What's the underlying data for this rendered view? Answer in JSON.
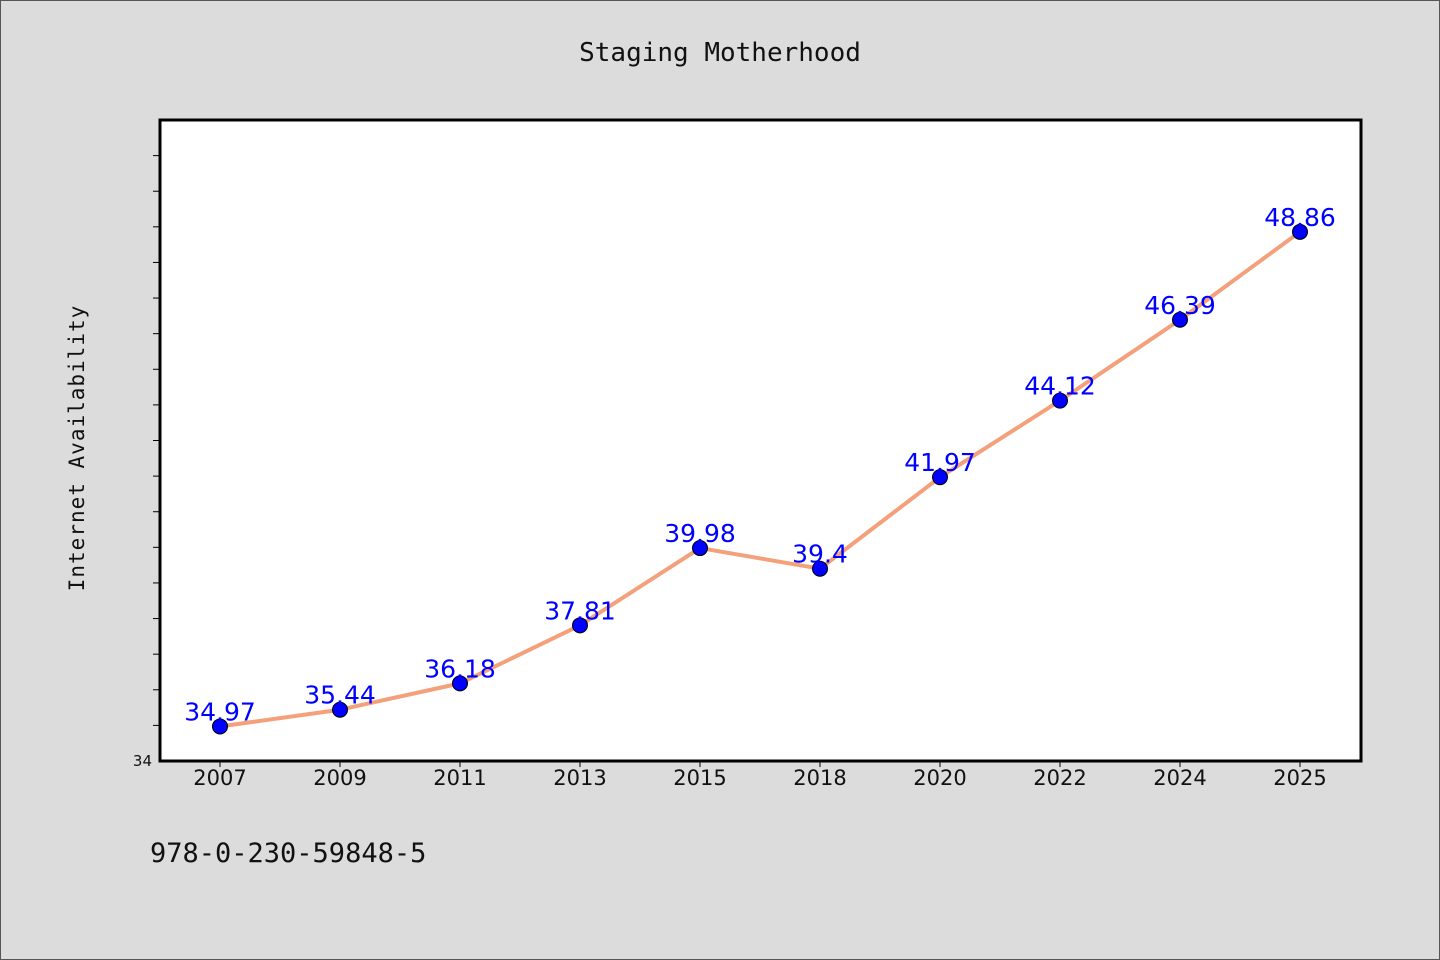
{
  "chart_data": {
    "type": "line",
    "title": "Staging Motherhood",
    "xlabel": "",
    "ylabel": "Internet Availability",
    "categories": [
      "2007",
      "2009",
      "2011",
      "2013",
      "2015",
      "2018",
      "2020",
      "2022",
      "2024",
      "2025"
    ],
    "series": [
      {
        "values": [
          34.97,
          35.44,
          36.18,
          37.81,
          39.98,
          39.4,
          41.97,
          44.12,
          46.39,
          48.86
        ]
      }
    ],
    "data_labels": [
      "34.97",
      "35.44",
      "36.18",
      "37.81",
      "39.98",
      "39.4",
      "41.97",
      "44.12",
      "46.39",
      "48.86"
    ],
    "ylim": [
      34,
      52
    ],
    "ytick_labels": [
      "34"
    ],
    "grid": false,
    "legend": "none",
    "colors": {
      "line": "#f4a07a",
      "marker": "#0000ff",
      "label": "#0000ff",
      "background": "#dcdcdc",
      "plot_background": "#ffffff"
    }
  },
  "footer": {
    "isbn": "978-0-230-59848-5"
  }
}
